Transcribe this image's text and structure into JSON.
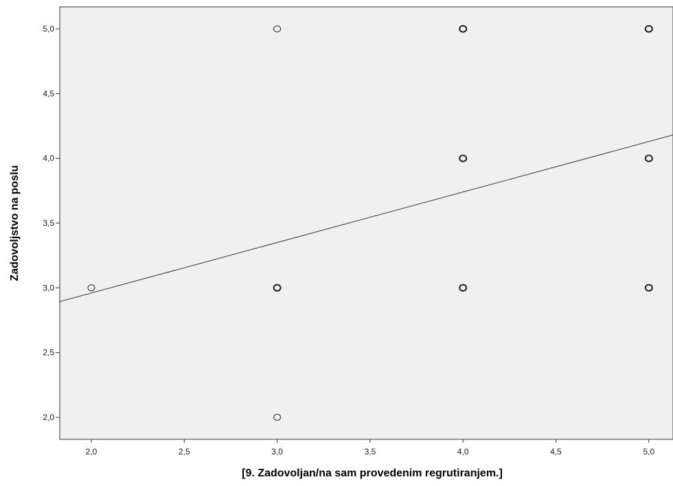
{
  "chart_data": {
    "type": "scatter",
    "title": "",
    "xlabel": "[9. Zadovoljan/na sam provedenim regrutiranjem.]",
    "ylabel": "Zadovoljstvo na poslu",
    "xlim": [
      1.83,
      5.13
    ],
    "ylim": [
      1.83,
      5.17
    ],
    "xticks": [
      2.0,
      2.5,
      3.0,
      3.5,
      4.0,
      4.5,
      5.0
    ],
    "xtick_labels": [
      "2,0",
      "2,5",
      "3,0",
      "3,5",
      "4,0",
      "4,5",
      "5,0"
    ],
    "yticks": [
      2.0,
      2.5,
      3.0,
      3.5,
      4.0,
      4.5,
      5.0
    ],
    "ytick_labels": [
      "2,0",
      "2,5",
      "3,0",
      "3,5",
      "4,0",
      "4,5",
      "5,0"
    ],
    "grid": false,
    "plot_background": "#f0f0f0",
    "marker": "open-circle",
    "points": [
      {
        "x": 2,
        "y": 3,
        "overlap": false
      },
      {
        "x": 3,
        "y": 5,
        "overlap": false
      },
      {
        "x": 3,
        "y": 3,
        "overlap": true
      },
      {
        "x": 3,
        "y": 2,
        "overlap": false
      },
      {
        "x": 4,
        "y": 5,
        "overlap": true
      },
      {
        "x": 4,
        "y": 4,
        "overlap": true
      },
      {
        "x": 4,
        "y": 3,
        "overlap": true
      },
      {
        "x": 5,
        "y": 5,
        "overlap": true
      },
      {
        "x": 5,
        "y": 4,
        "overlap": true
      },
      {
        "x": 5,
        "y": 3,
        "overlap": true
      }
    ],
    "fit_line": {
      "intercept": 2.18,
      "slope": 0.39
    }
  }
}
